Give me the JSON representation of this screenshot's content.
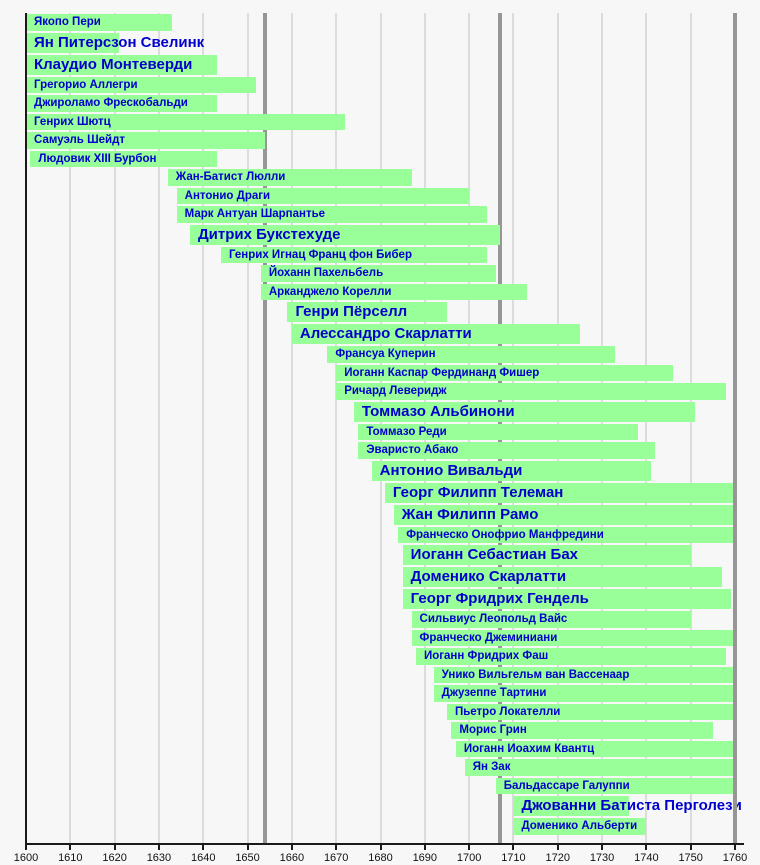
{
  "chart_data": {
    "type": "timeline-gantt",
    "title": "",
    "x_range": [
      1600,
      1760
    ],
    "x_ticks": [
      "1600",
      "1610",
      "1620",
      "1630",
      "1640",
      "1650",
      "1660",
      "1670",
      "1680",
      "1690",
      "1700",
      "1710",
      "1720",
      "1730",
      "1740",
      "1750",
      "1760"
    ],
    "grid": true,
    "era_dividers": [
      1654,
      1707,
      1760
    ],
    "composers": [
      {
        "name": "Якопо Пери",
        "start": 1600,
        "end": 1633,
        "size": "normal"
      },
      {
        "name": "Ян Питерсзон Свелинк",
        "start": 1600,
        "end": 1621,
        "size": "large"
      },
      {
        "name": "Клаудио Монтеверди",
        "start": 1600,
        "end": 1643,
        "size": "large"
      },
      {
        "name": "Грегорио Аллегри",
        "start": 1600,
        "end": 1652,
        "size": "normal"
      },
      {
        "name": "Джироламо Фрескобальди",
        "start": 1600,
        "end": 1643,
        "size": "normal"
      },
      {
        "name": "Генрих Шютц",
        "start": 1600,
        "end": 1672,
        "size": "normal"
      },
      {
        "name": "Самуэль Шейдт",
        "start": 1600,
        "end": 1654,
        "size": "normal"
      },
      {
        "name": "Людовик XIII Бурбон",
        "start": 1601,
        "end": 1643,
        "size": "normal"
      },
      {
        "name": "Жан-Батист Люлли",
        "start": 1632,
        "end": 1687,
        "size": "normal"
      },
      {
        "name": "Антонио Драги",
        "start": 1634,
        "end": 1700,
        "size": "normal"
      },
      {
        "name": "Марк Антуан Шарпантье",
        "start": 1634,
        "end": 1704,
        "size": "normal"
      },
      {
        "name": "Дитрих Букстехуде",
        "start": 1637,
        "end": 1707,
        "size": "large"
      },
      {
        "name": "Генрих Игнац Франц фон Бибер",
        "start": 1644,
        "end": 1704,
        "size": "normal"
      },
      {
        "name": "Йоханн Пахельбель",
        "start": 1653,
        "end": 1706,
        "size": "normal"
      },
      {
        "name": "Арканджело Корелли",
        "start": 1653,
        "end": 1713,
        "size": "normal"
      },
      {
        "name": "Генри Пёрселл",
        "start": 1659,
        "end": 1695,
        "size": "large"
      },
      {
        "name": "Алессандро Скарлатти",
        "start": 1660,
        "end": 1725,
        "size": "large"
      },
      {
        "name": "Франсуа Куперин",
        "start": 1668,
        "end": 1733,
        "size": "normal"
      },
      {
        "name": "Иоганн Каспар Фердинанд Фишер",
        "start": 1670,
        "end": 1746,
        "size": "normal"
      },
      {
        "name": "Ричард Леверидж",
        "start": 1670,
        "end": 1758,
        "size": "normal"
      },
      {
        "name": "Томмазо Альбинони",
        "start": 1674,
        "end": 1751,
        "size": "large"
      },
      {
        "name": "Томмазо Реди",
        "start": 1675,
        "end": 1738,
        "size": "normal"
      },
      {
        "name": "Эваристо Абако",
        "start": 1675,
        "end": 1742,
        "size": "normal"
      },
      {
        "name": "Антонио Вивальди",
        "start": 1678,
        "end": 1741,
        "size": "large"
      },
      {
        "name": "Георг Филипп Телеман",
        "start": 1681,
        "end": 1760,
        "size": "large"
      },
      {
        "name": "Жан Филипп Рамо",
        "start": 1683,
        "end": 1760,
        "size": "large"
      },
      {
        "name": "Франческо Онофрио Манфредини",
        "start": 1684,
        "end": 1760,
        "size": "normal"
      },
      {
        "name": "Иоганн Себастиан Бах",
        "start": 1685,
        "end": 1750,
        "size": "large"
      },
      {
        "name": "Доменико Скарлатти",
        "start": 1685,
        "end": 1757,
        "size": "large"
      },
      {
        "name": "Георг Фридрих Гендель",
        "start": 1685,
        "end": 1759,
        "size": "large"
      },
      {
        "name": "Сильвиус Леопольд Вайс",
        "start": 1687,
        "end": 1750,
        "size": "normal"
      },
      {
        "name": "Франческо Джеминиани",
        "start": 1687,
        "end": 1760,
        "size": "normal"
      },
      {
        "name": "Иоганн Фридрих Фаш",
        "start": 1688,
        "end": 1758,
        "size": "normal"
      },
      {
        "name": "Унико Вильгельм ван Вассенаар",
        "start": 1692,
        "end": 1760,
        "size": "normal"
      },
      {
        "name": "Джузеппе Тартини",
        "start": 1692,
        "end": 1760,
        "size": "normal"
      },
      {
        "name": "Пьетро Локателли",
        "start": 1695,
        "end": 1760,
        "size": "normal"
      },
      {
        "name": "Морис Грин",
        "start": 1696,
        "end": 1755,
        "size": "normal"
      },
      {
        "name": "Иоганн Иоахим Квантц",
        "start": 1697,
        "end": 1760,
        "size": "normal"
      },
      {
        "name": "Ян Зак",
        "start": 1699,
        "end": 1760,
        "size": "normal"
      },
      {
        "name": "Бальдассаре Галуппи",
        "start": 1706,
        "end": 1760,
        "size": "normal"
      },
      {
        "name": "Джованни Батиста Перголези",
        "start": 1710,
        "end": 1736,
        "size": "large"
      },
      {
        "name": "Доменико Альберти",
        "start": 1710,
        "end": 1740,
        "size": "normal"
      }
    ]
  },
  "colors": {
    "background": "#F7F7F7",
    "bar_fill": "#99FF99",
    "bar_text": "#0000CC",
    "grid_light": "#DCDCDC",
    "grid_dark": "#969696",
    "axis": "#1A1A1A",
    "tick_text": "#111111"
  }
}
